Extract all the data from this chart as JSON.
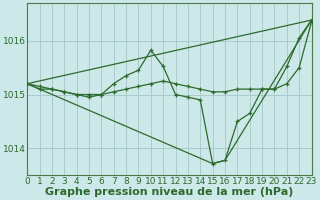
{
  "background_color": "#cce8e8",
  "grid_color": "#aacccc",
  "line_color": "#2d6a2d",
  "xlim": [
    0,
    23
  ],
  "ylim": [
    1013.5,
    1016.7
  ],
  "yticks": [
    1014,
    1015,
    1016
  ],
  "xticks": [
    0,
    1,
    2,
    3,
    4,
    5,
    6,
    7,
    8,
    9,
    10,
    11,
    12,
    13,
    14,
    15,
    16,
    17,
    18,
    19,
    20,
    21,
    22,
    23
  ],
  "xlabel": "Graphe pression niveau de la mer (hPa)",
  "title_fontsize": 8,
  "tick_fontsize": 6.5,
  "line1_x": [
    0,
    1,
    2,
    3,
    4,
    5,
    6,
    7,
    8,
    9,
    10,
    11,
    12,
    13,
    14,
    15,
    16,
    17,
    18,
    19,
    20,
    21,
    22,
    23
  ],
  "line1_y": [
    1015.2,
    1015.15,
    1015.1,
    1015.05,
    1015.0,
    1015.0,
    1015.0,
    1015.05,
    1015.1,
    1015.15,
    1015.2,
    1015.25,
    1015.2,
    1015.15,
    1015.1,
    1015.05,
    1015.05,
    1015.1,
    1015.1,
    1015.1,
    1015.1,
    1015.2,
    1015.5,
    1016.35
  ],
  "line2_x": [
    0,
    1,
    2,
    3,
    4,
    5,
    6,
    7,
    8,
    9,
    10,
    11,
    12,
    13,
    14,
    15,
    16,
    17,
    18,
    19,
    20,
    21,
    22,
    23
  ],
  "line2_y": [
    1015.2,
    1015.1,
    1015.1,
    1015.05,
    1015.0,
    1014.95,
    1015.0,
    1015.2,
    1015.35,
    1015.45,
    1015.82,
    1015.52,
    1015.0,
    1014.95,
    1014.9,
    1013.72,
    1013.78,
    1014.5,
    1014.65,
    1015.1,
    1015.1,
    1015.52,
    1016.05,
    1016.38
  ],
  "line3_x": [
    0,
    23
  ],
  "line3_y": [
    1015.2,
    1016.38
  ],
  "line4_x": [
    0,
    15,
    16,
    23
  ],
  "line4_y": [
    1015.2,
    1013.72,
    1013.78,
    1016.38
  ]
}
